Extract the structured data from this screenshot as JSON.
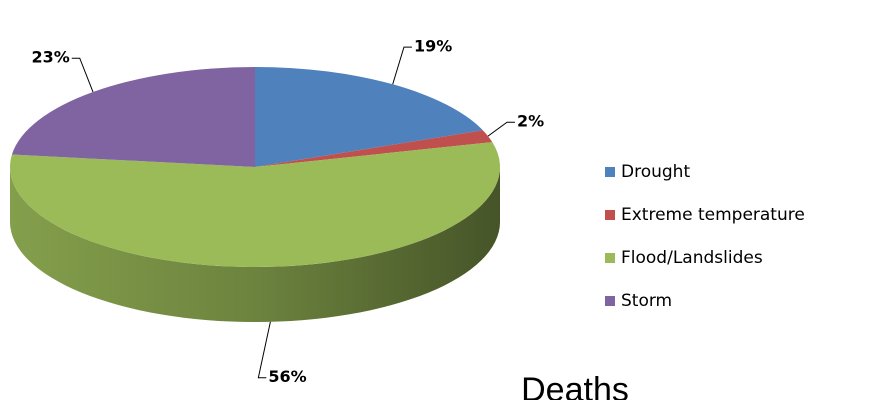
{
  "chart_data": {
    "type": "pie",
    "title": "Deaths",
    "categories": [
      "Drought",
      "Extreme temperature",
      "Flood/Landslides",
      "Storm"
    ],
    "values": [
      19,
      2,
      56,
      23
    ],
    "value_labels": [
      "19%",
      "2%",
      "56%",
      "23%"
    ],
    "colors": [
      "#4f81bd",
      "#c0504d",
      "#9bbb59",
      "#8064a2"
    ],
    "legend": "right"
  }
}
